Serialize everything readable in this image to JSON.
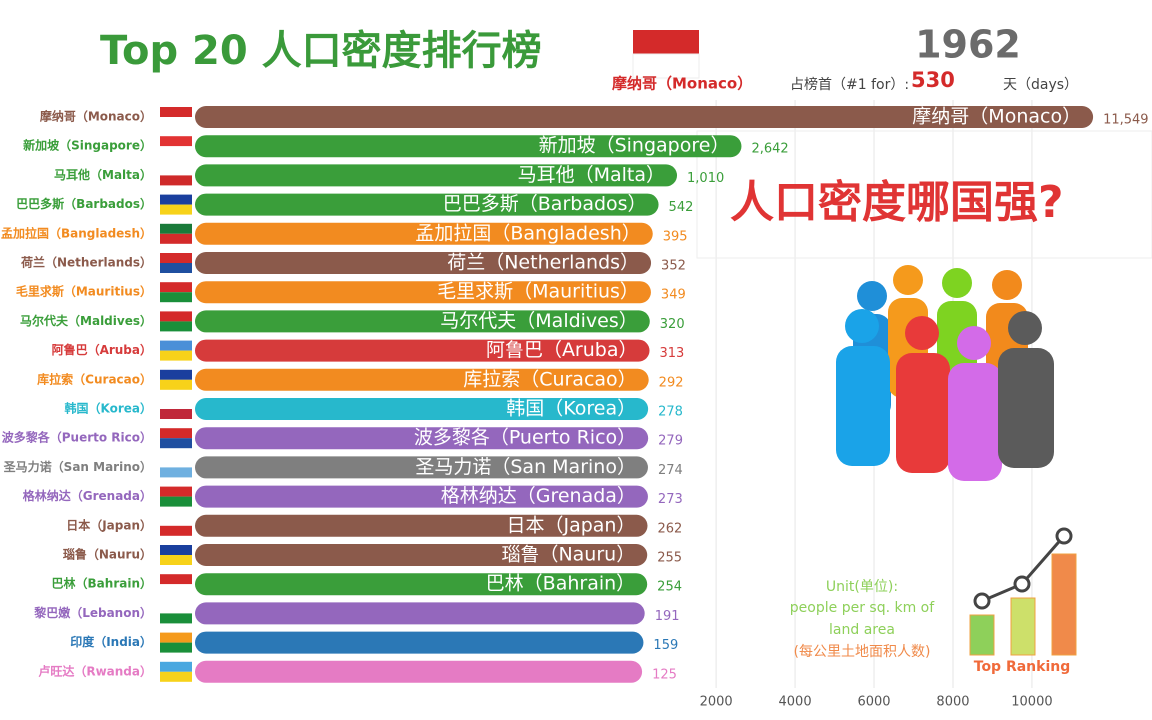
{
  "chart_data": {
    "type": "bar",
    "orientation": "horizontal",
    "title": "Top 20 人口密度排行榜",
    "year": "1962",
    "leader": {
      "name": "摩纳哥（Monaco）",
      "label": "占榜首（#1 for）:",
      "days": 530,
      "unit": "天（days）"
    },
    "headline": "人口密度哪国强?",
    "unit_note": [
      "Unit(单位):",
      "people per sq. km of",
      "land area",
      "(每公里土地面积人数)"
    ],
    "badge": "Top Ranking",
    "categories": [
      "摩纳哥（Monaco）",
      "新加坡（Singapore）",
      "马耳他（Malta）",
      "巴巴多斯（Barbados）",
      "孟加拉国（Bangladesh）",
      "荷兰（Netherlands）",
      "毛里求斯（Mauritius）",
      "马尔代夫（Maldives）",
      "阿鲁巴（Aruba）",
      "库拉索（Curacao）",
      "韩国（Korea）",
      "波多黎各（Puerto Rico）",
      "圣马力诺（San Marino）",
      "格林纳达（Grenada）",
      "日本（Japan）",
      "瑙鲁（Nauru）",
      "巴林（Bahrain）",
      "黎巴嫩（Lebanon）",
      "印度（India）",
      "卢旺达（Rwanda）"
    ],
    "values": [
      11549,
      2642,
      1010,
      542,
      395,
      352,
      349,
      320,
      313,
      292,
      278,
      279,
      274,
      273,
      262,
      255,
      254,
      191,
      159,
      125
    ],
    "value_labels": [
      "11,549",
      "2,642",
      "1,010",
      "542",
      "395",
      "352",
      "349",
      "320",
      "313",
      "292",
      "278",
      "279",
      "274",
      "273",
      "262",
      "255",
      "254",
      "191",
      "159",
      "125"
    ],
    "colors": [
      "#8b5a4b",
      "#3a9e3a",
      "#3a9e3a",
      "#3a9e3a",
      "#f28b20",
      "#8b5a4b",
      "#f28b20",
      "#3a9e3a",
      "#d63b3b",
      "#f28b20",
      "#27b8cc",
      "#9467bd",
      "#7f7f7f",
      "#9467bd",
      "#8b5a4b",
      "#8b5a4b",
      "#3a9e3a",
      "#9467bd",
      "#2b78b6",
      "#e57bc4"
    ],
    "xlim": [
      -11200,
      11800
    ],
    "xticks": [
      2000,
      4000,
      6000,
      8000,
      10000
    ],
    "grid": true
  }
}
